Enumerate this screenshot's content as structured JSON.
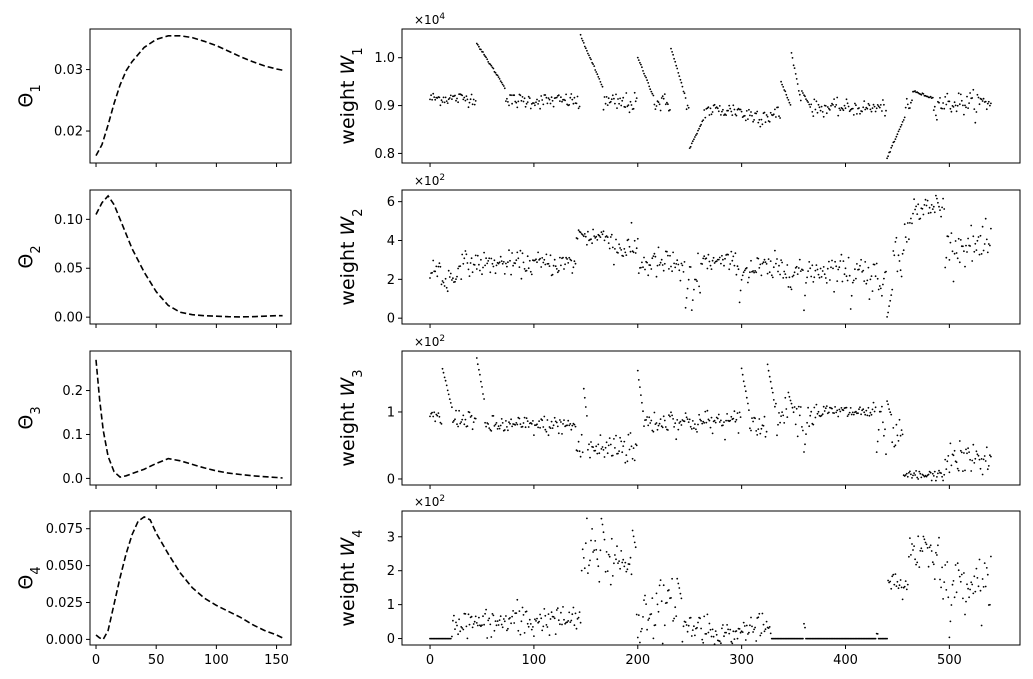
{
  "figure": {
    "background": "#ffffff",
    "ink": "#000000"
  },
  "chart_data": [
    {
      "type": "line",
      "style": "dashed",
      "title": "",
      "ylabel": "Θ",
      "ylabel_sub": "1",
      "xlabel": "",
      "xlim": [
        -5,
        162
      ],
      "ylim": [
        0.0148,
        0.0366
      ],
      "xticks": [
        0,
        50,
        100,
        150
      ],
      "xticklabels_shown": false,
      "yticks": [
        0.02,
        0.03
      ],
      "yticklabels": [
        "0.02",
        "0.03"
      ],
      "x": [
        0,
        5,
        10,
        15,
        20,
        25,
        30,
        40,
        50,
        60,
        70,
        80,
        90,
        100,
        110,
        120,
        130,
        140,
        150,
        155
      ],
      "y": [
        0.016,
        0.0178,
        0.021,
        0.0245,
        0.0275,
        0.0298,
        0.0313,
        0.0336,
        0.0349,
        0.0355,
        0.0355,
        0.0352,
        0.0346,
        0.0339,
        0.033,
        0.0321,
        0.0313,
        0.0306,
        0.0301,
        0.0299
      ]
    },
    {
      "type": "line",
      "style": "dashed",
      "title": "",
      "ylabel": "Θ",
      "ylabel_sub": "2",
      "xlabel": "",
      "xlim": [
        -5,
        162
      ],
      "ylim": [
        -0.007,
        0.13
      ],
      "xticks": [
        0,
        50,
        100,
        150
      ],
      "xticklabels_shown": false,
      "yticks": [
        0,
        0.05,
        0.1
      ],
      "yticklabels": [
        "0.00",
        "0.05",
        "0.10"
      ],
      "x": [
        0,
        5,
        10,
        15,
        20,
        30,
        40,
        50,
        60,
        70,
        80,
        90,
        100,
        110,
        120,
        130,
        140,
        150,
        155
      ],
      "y": [
        0.105,
        0.117,
        0.124,
        0.115,
        0.1,
        0.07,
        0.046,
        0.026,
        0.012,
        0.005,
        0.0025,
        0.0015,
        0.001,
        0.0005,
        0.0003,
        0.0005,
        0.001,
        0.0015,
        0.0015
      ]
    },
    {
      "type": "line",
      "style": "dashed",
      "title": "",
      "ylabel": "Θ",
      "ylabel_sub": "3",
      "xlabel": "",
      "xlim": [
        -5,
        162
      ],
      "ylim": [
        -0.015,
        0.29
      ],
      "xticks": [
        0,
        50,
        100,
        150
      ],
      "xticklabels_shown": false,
      "yticks": [
        0,
        0.1,
        0.2
      ],
      "yticklabels": [
        "0.0",
        "0.1",
        "0.2"
      ],
      "x": [
        0,
        3,
        6,
        10,
        15,
        20,
        25,
        30,
        40,
        50,
        60,
        70,
        80,
        90,
        100,
        110,
        120,
        130,
        140,
        150,
        155
      ],
      "y": [
        0.27,
        0.18,
        0.11,
        0.05,
        0.015,
        0.003,
        0.006,
        0.011,
        0.021,
        0.034,
        0.045,
        0.04,
        0.032,
        0.024,
        0.017,
        0.012,
        0.009,
        0.006,
        0.004,
        0.002,
        0.001
      ]
    },
    {
      "type": "line",
      "style": "dashed",
      "title": "",
      "ylabel": "Θ",
      "ylabel_sub": "4",
      "xlabel": "",
      "xlim": [
        -5,
        162
      ],
      "ylim": [
        -0.0038,
        0.087
      ],
      "xticks": [
        0,
        50,
        100,
        150
      ],
      "xticklabels_shown": true,
      "xticklabels": [
        "0",
        "50",
        "100",
        "150"
      ],
      "yticks": [
        0,
        0.025,
        0.05,
        0.075
      ],
      "yticklabels": [
        "0.000",
        "0.025",
        "0.050",
        "0.075"
      ],
      "x": [
        0,
        3,
        6,
        10,
        15,
        20,
        25,
        30,
        35,
        40,
        45,
        50,
        60,
        70,
        80,
        90,
        100,
        110,
        120,
        130,
        140,
        150,
        155
      ],
      "y": [
        0.003,
        0.001,
        0.0,
        0.006,
        0.024,
        0.042,
        0.058,
        0.071,
        0.08,
        0.083,
        0.081,
        0.072,
        0.058,
        0.045,
        0.035,
        0.028,
        0.023,
        0.019,
        0.015,
        0.01,
        0.006,
        0.003,
        0.001
      ]
    },
    {
      "type": "scatter",
      "title": "",
      "ylabel": "weight",
      "ylabel_var": "W",
      "ylabel_sub": "1",
      "xlabel": "",
      "multiplier": "×10",
      "multiplier_exp": "4",
      "scale": 10000,
      "xlim": [
        -27,
        568
      ],
      "ylim": [
        0.78,
        1.06
      ],
      "xticks": [
        0,
        100,
        200,
        300,
        400,
        500
      ],
      "xticklabels_shown": false,
      "yticks": [
        0.8,
        0.9,
        1.0
      ],
      "yticklabels": [
        "0.8",
        "0.9",
        "1.0"
      ],
      "n": 541,
      "x_start": 0,
      "x_step": 1,
      "segments": [
        [
          0,
          44,
          0.915,
          0.007
        ],
        [
          45,
          70,
          0.92,
          0.012
        ],
        [
          71,
          142,
          0.91,
          0.008
        ],
        [
          143,
          195,
          0.905,
          0.011
        ],
        [
          196,
          238,
          0.905,
          0.01
        ],
        [
          239,
          300,
          0.89,
          0.009
        ],
        [
          301,
          352,
          0.88,
          0.011
        ],
        [
          353,
          440,
          0.895,
          0.008
        ],
        [
          441,
          541,
          0.905,
          0.012
        ]
      ],
      "spikes": [
        [
          45,
          1.03,
          0.935,
          28
        ],
        [
          145,
          1.045,
          0.935,
          22
        ],
        [
          200,
          1.0,
          0.915,
          16
        ],
        [
          232,
          1.02,
          0.91,
          15
        ],
        [
          250,
          0.81,
          0.875,
          14
        ],
        [
          338,
          0.95,
          0.895,
          10
        ],
        [
          348,
          1.01,
          0.9,
          10
        ],
        [
          358,
          0.93,
          0.9,
          8
        ],
        [
          440,
          0.79,
          0.88,
          18
        ],
        [
          465,
          0.93,
          0.915,
          20
        ]
      ]
    },
    {
      "type": "scatter",
      "title": "",
      "ylabel": "weight",
      "ylabel_var": "W",
      "ylabel_sub": "2",
      "xlabel": "",
      "multiplier": "×10",
      "multiplier_exp": "2",
      "scale": 100,
      "xlim": [
        -27,
        568
      ],
      "ylim": [
        -0.3,
        6.6
      ],
      "xticks": [
        0,
        100,
        200,
        300,
        400,
        500
      ],
      "xticklabels_shown": false,
      "yticks": [
        0,
        2,
        4,
        6
      ],
      "yticklabels": [
        "0",
        "2",
        "4",
        "6"
      ],
      "n": 541,
      "x_start": 0,
      "x_step": 1,
      "segments": [
        [
          0,
          10,
          2.5,
          0.35
        ],
        [
          11,
          25,
          2.0,
          0.35
        ],
        [
          26,
          140,
          2.8,
          0.3
        ],
        [
          141,
          175,
          4.2,
          0.3
        ],
        [
          176,
          200,
          3.6,
          0.4
        ],
        [
          201,
          240,
          2.8,
          0.4
        ],
        [
          241,
          260,
          2.2,
          0.6
        ],
        [
          261,
          300,
          2.9,
          0.25
        ],
        [
          301,
          420,
          2.5,
          0.4
        ],
        [
          421,
          445,
          2.1,
          0.5
        ],
        [
          446,
          462,
          3.8,
          0.8
        ],
        [
          463,
          495,
          5.6,
          0.35
        ],
        [
          496,
          541,
          3.7,
          0.45
        ]
      ],
      "spikes": [
        [
          143,
          4.5,
          4.2,
          6
        ],
        [
          246,
          0.5,
          2.5,
          4
        ],
        [
          252,
          0.4,
          2.5,
          4
        ],
        [
          298,
          0.8,
          2.6,
          3
        ],
        [
          360,
          0.4,
          2.5,
          3
        ],
        [
          405,
          0.5,
          2.5,
          3
        ],
        [
          440,
          0.0,
          1.8,
          6
        ],
        [
          487,
          6.3,
          5.6,
          4
        ],
        [
          540,
          4.6,
          3.8,
          3
        ]
      ]
    },
    {
      "type": "scatter",
      "title": "",
      "ylabel": "weight",
      "ylabel_var": "W",
      "ylabel_sub": "3",
      "xlabel": "",
      "multiplier": "×10",
      "multiplier_exp": "2",
      "scale": 100,
      "xlim": [
        -27,
        568
      ],
      "ylim": [
        -0.09,
        1.91
      ],
      "xticks": [
        0,
        100,
        200,
        300,
        400,
        500
      ],
      "xticklabels_shown": false,
      "yticks": [
        0,
        1
      ],
      "yticklabels": [
        "0",
        "1"
      ],
      "n": 541,
      "x_start": 0,
      "x_step": 1,
      "segments": [
        [
          0,
          44,
          0.9,
          0.07
        ],
        [
          45,
          140,
          0.8,
          0.07
        ],
        [
          141,
          175,
          0.45,
          0.12
        ],
        [
          176,
          200,
          0.5,
          0.15
        ],
        [
          201,
          295,
          0.85,
          0.09
        ],
        [
          296,
          325,
          0.8,
          0.12
        ],
        [
          326,
          370,
          0.95,
          0.12
        ],
        [
          371,
          435,
          1.0,
          0.06
        ],
        [
          436,
          455,
          0.6,
          0.12
        ],
        [
          456,
          495,
          0.05,
          0.04
        ],
        [
          496,
          541,
          0.3,
          0.12
        ]
      ],
      "spikes": [
        [
          12,
          1.65,
          1.0,
          10
        ],
        [
          45,
          1.8,
          1.1,
          8
        ],
        [
          148,
          1.35,
          0.8,
          4
        ],
        [
          200,
          1.6,
          0.9,
          6
        ],
        [
          232,
          1.0,
          0.85,
          3
        ],
        [
          300,
          1.65,
          0.95,
          8
        ],
        [
          325,
          1.72,
          1.0,
          8
        ],
        [
          345,
          1.3,
          0.95,
          6
        ],
        [
          360,
          0.4,
          0.8,
          3
        ],
        [
          430,
          0.4,
          0.9,
          3
        ],
        [
          440,
          1.15,
          0.9,
          5
        ]
      ]
    },
    {
      "type": "scatter",
      "title": "",
      "ylabel": "weight",
      "ylabel_var": "W",
      "ylabel_sub": "4",
      "xlabel": "",
      "multiplier": "×10",
      "multiplier_exp": "2",
      "scale": 100,
      "xlim": [
        -27,
        568
      ],
      "ylim": [
        -0.19,
        3.76
      ],
      "xticks": [
        0,
        100,
        200,
        300,
        400,
        500
      ],
      "xticklabels_shown": true,
      "xticklabels": [
        "0",
        "100",
        "200",
        "300",
        "400",
        "500"
      ],
      "yticks": [
        0,
        1,
        2,
        3
      ],
      "yticklabels": [
        "0",
        "1",
        "2",
        "3"
      ],
      "n": 541,
      "x_start": 0,
      "x_step": 1,
      "segments": [
        [
          0,
          20,
          0.0,
          0.0
        ],
        [
          21,
          70,
          0.45,
          0.2
        ],
        [
          71,
          100,
          0.5,
          0.3
        ],
        [
          101,
          145,
          0.55,
          0.2
        ],
        [
          146,
          175,
          2.4,
          0.5
        ],
        [
          176,
          198,
          2.3,
          0.4
        ],
        [
          199,
          205,
          0.3,
          0.3
        ],
        [
          206,
          240,
          0.9,
          0.4
        ],
        [
          241,
          270,
          0.35,
          0.25
        ],
        [
          271,
          300,
          0.15,
          0.15
        ],
        [
          301,
          328,
          0.3,
          0.2
        ],
        [
          329,
          440,
          0.0,
          0.0
        ],
        [
          441,
          460,
          1.6,
          0.2
        ],
        [
          461,
          490,
          2.6,
          0.3
        ],
        [
          491,
          541,
          1.7,
          0.35
        ]
      ],
      "spikes": [
        [
          165,
          3.55,
          2.7,
          4
        ],
        [
          195,
          3.2,
          2.5,
          4
        ],
        [
          238,
          1.8,
          1.0,
          5
        ],
        [
          360,
          0.45,
          0.2,
          2
        ],
        [
          430,
          0.15,
          0.1,
          2
        ],
        [
          475,
          3.0,
          2.6,
          5
        ],
        [
          500,
          0.0,
          1.5,
          3
        ],
        [
          540,
          2.4,
          1.8,
          3
        ]
      ]
    }
  ]
}
